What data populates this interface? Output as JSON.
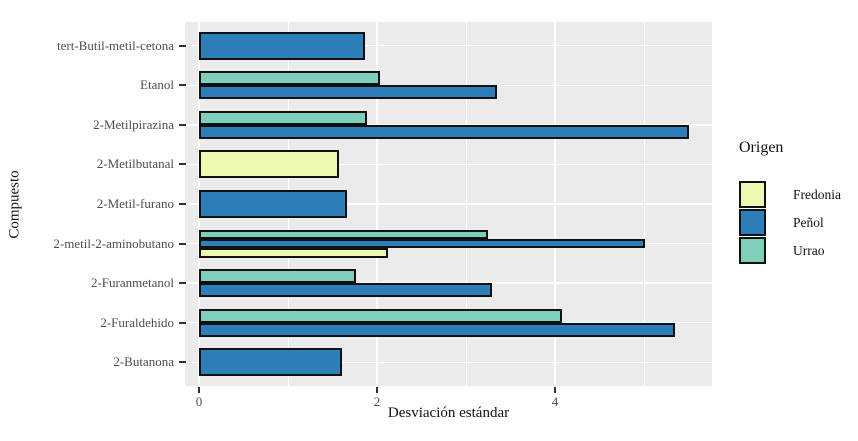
{
  "chart_data": {
    "type": "bar",
    "orientation": "horizontal",
    "title": "",
    "xlabel": "Desviación estándar",
    "ylabel": "Compuesto",
    "legend_title": "Origen",
    "legend_position": "right",
    "grid": true,
    "panel_background": "#ebebeb",
    "gridline_color": "#ffffff",
    "bar_border_color": "#101010",
    "axis_text_color": "#4d4d4d",
    "xlim": [
      0,
      5.8
    ],
    "x_major_ticks": [
      0,
      2,
      4
    ],
    "x_minor_gridlines": [
      1,
      3,
      5
    ],
    "categories": [
      "tert-Butil-metil-cetona",
      "Etanol",
      "2-Metilpirazina",
      "2-Metilbutanal",
      "2-Metil-furano",
      "2-metil-2-aminobutano",
      "2-Furanmetanol",
      "2-Furaldehido",
      "2-Butanona"
    ],
    "bar_order_top_to_bottom": [
      "Urrao",
      "Peñol",
      "Fredonia"
    ],
    "series": [
      {
        "name": "Fredonia",
        "color": "#edf8b1",
        "values": [
          null,
          null,
          null,
          1.57,
          null,
          2.12,
          null,
          null,
          null
        ]
      },
      {
        "name": "Peñol",
        "color": "#2c7fb8",
        "values": [
          1.87,
          3.35,
          5.5,
          null,
          1.66,
          5.01,
          3.29,
          5.35,
          1.61
        ]
      },
      {
        "name": "Urrao",
        "color": "#7fcdbb",
        "values": [
          null,
          2.03,
          1.89,
          null,
          null,
          3.25,
          1.76,
          4.08,
          null
        ]
      }
    ]
  }
}
